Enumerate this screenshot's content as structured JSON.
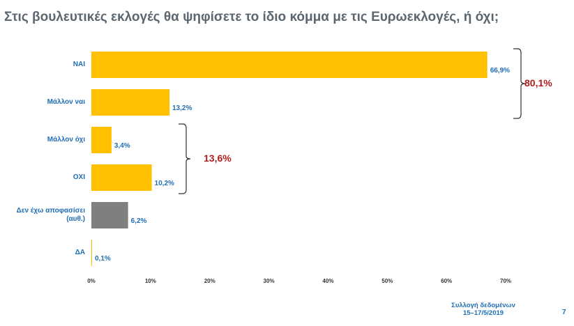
{
  "title": "Στις βουλευτικές εκλογές θα ψηφίσετε το ίδιο κόμμα με τις Ευρωεκλογές, ή όχι;",
  "chart_data": {
    "type": "bar",
    "orientation": "horizontal",
    "categories": [
      "ΝΑΙ",
      "Μάλλον ναι",
      "Μάλλον όχι",
      "ΟΧΙ",
      "Δεν έχω αποφασίσει (αυθ.)",
      "ΔΑ"
    ],
    "values": [
      66.9,
      13.2,
      3.4,
      10.2,
      6.2,
      0.1
    ],
    "value_labels": [
      "66,9%",
      "13,2%",
      "3,4%",
      "10,2%",
      "6,2%",
      "0,1%"
    ],
    "colors": [
      "#ffc000",
      "#ffc000",
      "#ffc000",
      "#ffc000",
      "#7f7f7f",
      "#ffc000"
    ],
    "xlim": [
      0,
      70
    ],
    "x_ticks": [
      0,
      10,
      20,
      30,
      40,
      50,
      60,
      70
    ],
    "x_tick_labels": [
      "0%",
      "10%",
      "20%",
      "30%",
      "40%",
      "50%",
      "60%",
      "70%"
    ],
    "grid": false,
    "brace_groups": [
      {
        "categories": [
          "ΝΑΙ",
          "Μάλλον ναι"
        ],
        "label": "80,1%"
      },
      {
        "categories": [
          "Μάλλον όχι",
          "ΟΧΙ"
        ],
        "label": "13,6%"
      }
    ]
  },
  "footer": {
    "note_line1": "Συλλογή δεδομένων",
    "note_line2": "15–17/5/2019",
    "page_number": "7"
  }
}
